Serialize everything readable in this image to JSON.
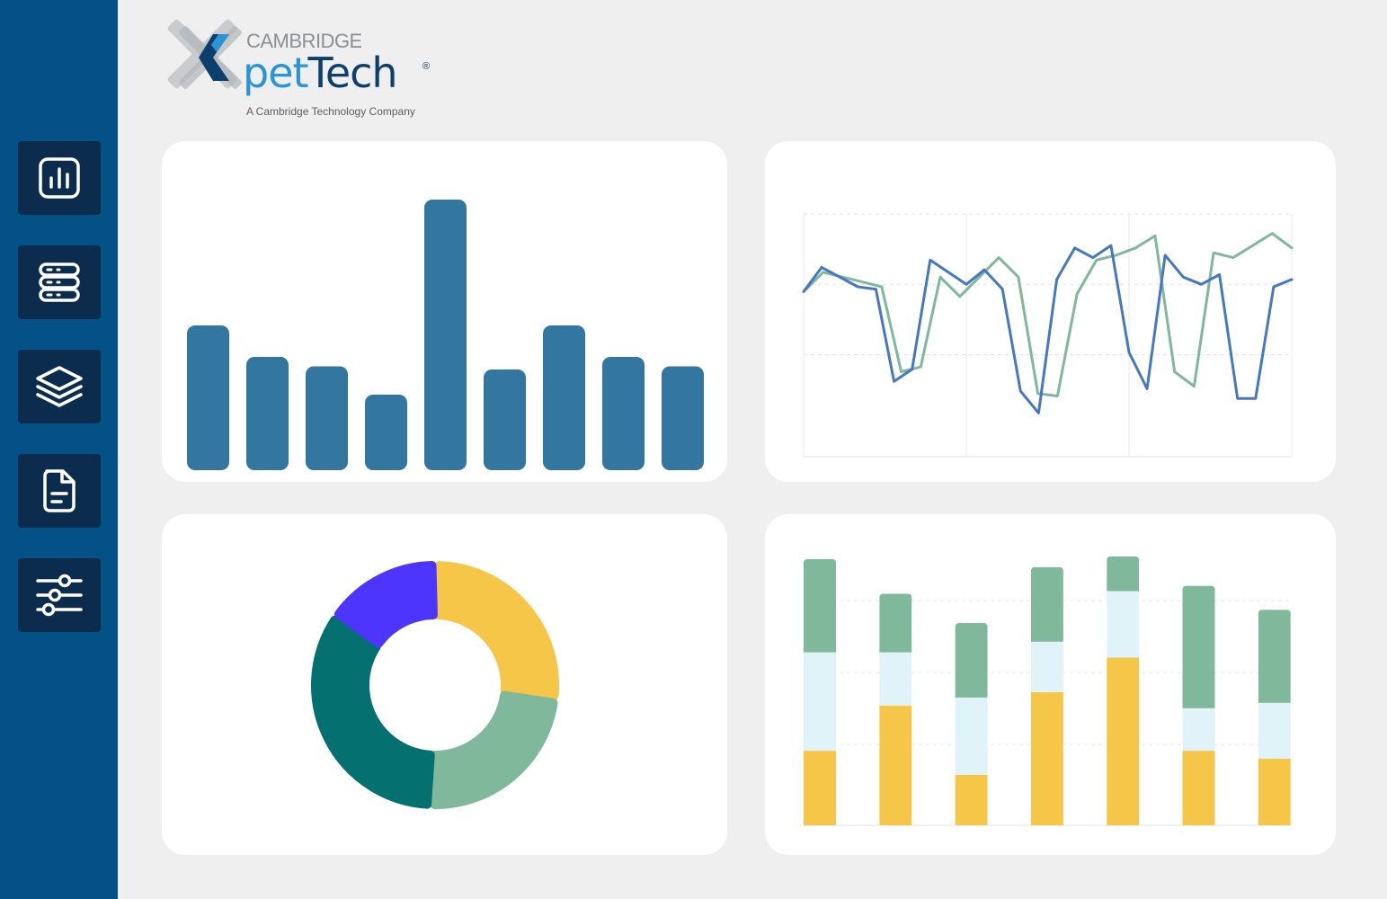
{
  "sidebar": {
    "items": [
      {
        "icon": "bar-chart-icon"
      },
      {
        "icon": "database-icon"
      },
      {
        "icon": "layers-icon"
      },
      {
        "icon": "document-icon"
      },
      {
        "icon": "sliders-icon"
      }
    ]
  },
  "brand": {
    "top": "CAMBRIDGE",
    "pet": "pet",
    "tech": "Tech",
    "registered": "®",
    "tagline": "A Cambridge Technology Company",
    "colors": {
      "light_blue": "#2b94d6",
      "navy": "#0c3f6b",
      "gray": "#8c8f93"
    }
  },
  "chart_data": [
    {
      "type": "bar",
      "values": [
        46,
        36,
        33,
        24,
        86,
        32,
        46,
        36,
        33
      ],
      "ylim": [
        0,
        100
      ],
      "color": "#33769f",
      "grid": false
    },
    {
      "type": "line",
      "ylim": [
        0,
        100
      ],
      "grid": true,
      "series": [
        {
          "color": "#4677c3",
          "values": [
            68,
            78,
            74,
            70,
            69,
            31,
            36,
            81,
            76,
            71,
            77,
            69,
            27,
            18,
            73,
            86,
            82,
            87,
            43,
            28,
            83,
            74,
            71,
            75,
            24,
            24,
            70,
            73
          ]
        },
        {
          "color": "#7fb89a",
          "values": [
            68,
            76,
            74,
            72,
            70,
            35,
            37,
            74,
            66,
            74,
            82,
            74,
            26,
            25,
            67,
            81,
            83,
            86,
            91,
            35,
            29,
            84,
            82,
            87,
            92,
            86
          ]
        }
      ]
    },
    {
      "type": "pie",
      "donut": true,
      "values": [
        25,
        22,
        32,
        14
      ],
      "colors": [
        "#f6c649",
        "#7fb89a",
        "#057070",
        "#4d35fe"
      ]
    },
    {
      "type": "bar",
      "stacked": true,
      "ylim": [
        0,
        100
      ],
      "grid": true,
      "series": [
        {
          "color": "#f6c649",
          "values": [
            28,
            45,
            19,
            50,
            63,
            28,
            25
          ]
        },
        {
          "color": "#e0f3f8",
          "values": [
            37,
            20,
            29,
            19,
            25,
            16,
            21
          ]
        },
        {
          "color": "#7fb89a",
          "values": [
            35,
            22,
            28,
            28,
            13,
            46,
            35
          ]
        }
      ]
    }
  ]
}
